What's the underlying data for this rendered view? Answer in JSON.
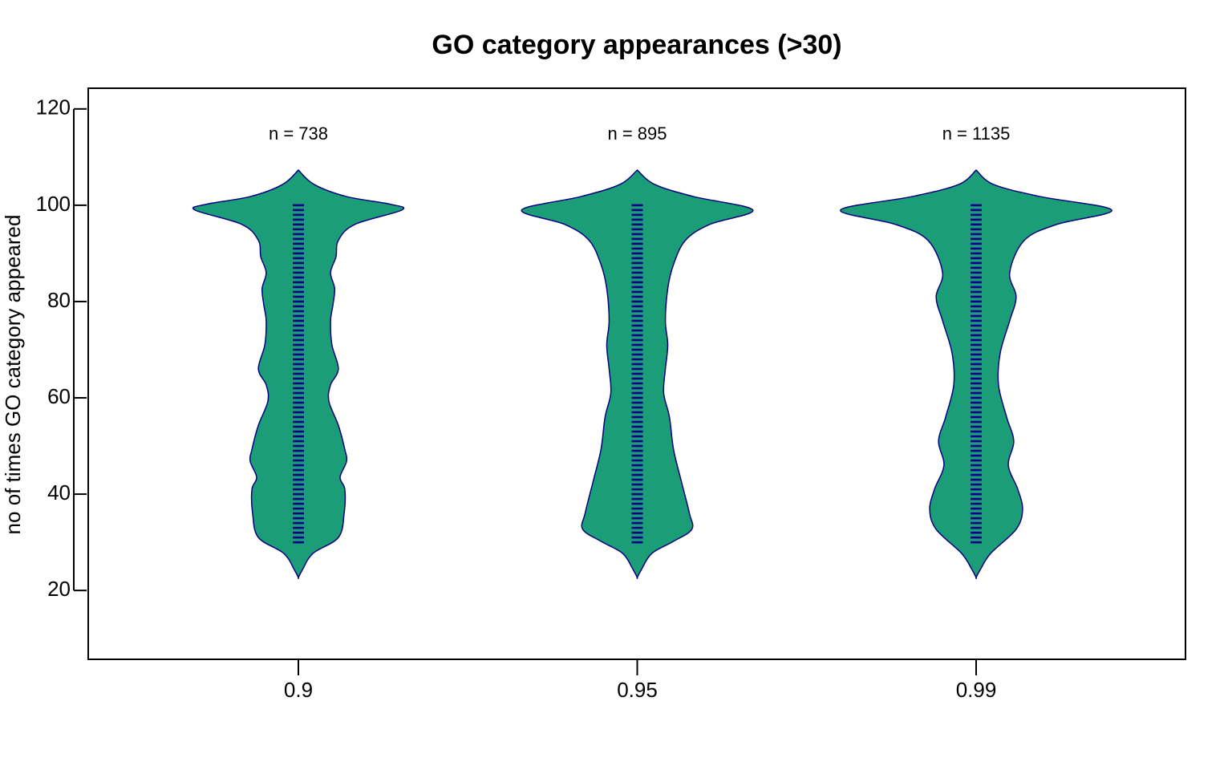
{
  "chart_data": {
    "type": "violin",
    "title": "GO category appearances (>30)",
    "ylabel": "no of times GO category appeared",
    "categories": [
      "0.9",
      "0.95",
      "0.99"
    ],
    "ylim": [
      5.7,
      124.3
    ],
    "yticks": [
      20,
      40,
      60,
      80,
      100,
      120
    ],
    "fill": "#1b9e77",
    "outline": "#000080",
    "point_color": "#00008b",
    "violins": [
      {
        "label": "n = 738",
        "y": [
          107.3,
          104.3,
          101.8,
          100.2,
          99,
          96,
          92.7,
          89.3,
          86,
          82.7,
          79.3,
          76,
          71,
          66,
          62.7,
          59.3,
          54.3,
          49.3,
          46.8,
          43.5,
          41,
          36,
          31,
          27.7,
          24.3,
          22.7
        ],
        "halfwidth": [
          0,
          0.047,
          0.142,
          0.272,
          0.305,
          0.166,
          0.118,
          0.111,
          0.095,
          0.107,
          0.102,
          0.095,
          0.099,
          0.118,
          0.095,
          0.09,
          0.118,
          0.137,
          0.142,
          0.123,
          0.137,
          0.135,
          0.118,
          0.043,
          0.012,
          0
        ],
        "points": [
          30,
          31,
          32,
          33,
          34,
          35,
          36,
          37,
          38,
          39,
          40,
          41,
          42,
          43,
          44,
          45,
          46,
          47,
          48,
          49,
          50,
          51,
          52,
          53,
          54,
          55,
          56,
          57,
          58,
          59,
          60,
          61,
          62,
          63,
          64,
          65,
          66,
          67,
          68,
          69,
          70,
          71,
          72,
          73,
          74,
          75,
          76,
          77,
          78,
          79,
          80,
          81,
          82,
          83,
          84,
          85,
          86,
          87,
          88,
          89,
          90,
          91,
          92,
          93,
          94,
          95,
          96,
          97,
          98,
          99,
          100
        ]
      },
      {
        "label": "n = 895",
        "y": [
          107.3,
          104.3,
          101.8,
          99,
          96,
          92.7,
          87.7,
          82.7,
          76,
          71,
          66,
          61,
          56,
          49.3,
          42.7,
          36,
          32.7,
          30.2,
          27.7,
          24.3,
          22.7
        ],
        "halfwidth": [
          0,
          0.052,
          0.166,
          0.341,
          0.213,
          0.142,
          0.107,
          0.09,
          0.083,
          0.09,
          0.083,
          0.078,
          0.095,
          0.107,
          0.13,
          0.154,
          0.161,
          0.107,
          0.043,
          0.012,
          0
        ],
        "points": [
          30,
          31,
          32,
          33,
          34,
          35,
          36,
          37,
          38,
          39,
          40,
          41,
          42,
          43,
          44,
          45,
          46,
          47,
          48,
          49,
          50,
          51,
          52,
          53,
          54,
          55,
          56,
          57,
          58,
          59,
          60,
          61,
          62,
          63,
          64,
          65,
          66,
          67,
          68,
          69,
          70,
          71,
          72,
          73,
          74,
          75,
          76,
          77,
          78,
          79,
          80,
          81,
          82,
          83,
          84,
          85,
          86,
          87,
          88,
          89,
          90,
          91,
          92,
          93,
          94,
          95,
          96,
          97,
          98,
          99,
          100
        ]
      },
      {
        "label": "n = 1135",
        "y": [
          107.3,
          104.3,
          101.8,
          99,
          96,
          92.7,
          86,
          81,
          76,
          69.3,
          62.7,
          56,
          51,
          46,
          41,
          36.8,
          32.7,
          27.7,
          24.3,
          22.7
        ],
        "halfwidth": [
          0,
          0.052,
          0.189,
          0.4,
          0.237,
          0.142,
          0.099,
          0.118,
          0.099,
          0.071,
          0.066,
          0.09,
          0.111,
          0.095,
          0.123,
          0.137,
          0.118,
          0.043,
          0.012,
          0
        ],
        "points": [
          30,
          31,
          32,
          33,
          34,
          35,
          36,
          37,
          38,
          39,
          40,
          41,
          42,
          43,
          44,
          45,
          46,
          47,
          48,
          49,
          50,
          51,
          52,
          53,
          54,
          55,
          56,
          57,
          58,
          59,
          60,
          61,
          62,
          63,
          64,
          65,
          66,
          67,
          68,
          69,
          70,
          71,
          72,
          73,
          74,
          75,
          76,
          77,
          78,
          79,
          80,
          81,
          82,
          83,
          84,
          85,
          86,
          87,
          88,
          89,
          90,
          91,
          92,
          93,
          94,
          95,
          96,
          97,
          98,
          99,
          100
        ]
      }
    ]
  }
}
